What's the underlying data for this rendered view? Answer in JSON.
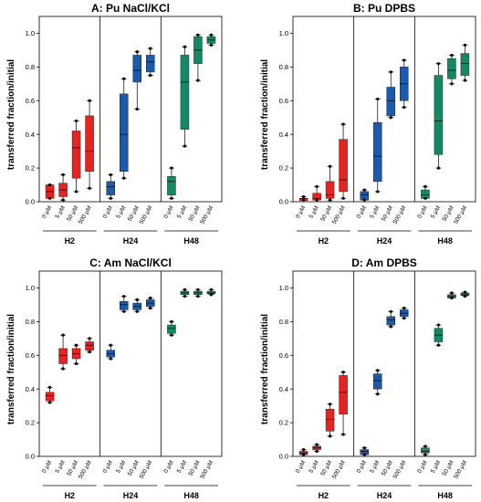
{
  "chart_data": [
    {
      "type": "box",
      "title": "A: Pu NaCl/KCl",
      "ylabel": "transferred fraction/initial",
      "ylim": [
        0,
        1.1
      ],
      "yticks": [
        "0.0",
        "0.2",
        "0.4",
        "0.6",
        "0.8",
        "1.0"
      ],
      "x_categories": [
        "0 µM",
        "5 µM",
        "50 µM",
        "500 µM"
      ],
      "groups": [
        {
          "name": "H2",
          "color": "#e8231f",
          "boxes": [
            {
              "whisker_low": 0.02,
              "q1": 0.02,
              "median": 0.06,
              "q3": 0.1,
              "whisker_high": 0.1
            },
            {
              "whisker_low": 0.01,
              "q1": 0.03,
              "median": 0.07,
              "q3": 0.11,
              "whisker_high": 0.16
            },
            {
              "whisker_low": 0.06,
              "q1": 0.14,
              "median": 0.32,
              "q3": 0.42,
              "whisker_high": 0.48
            },
            {
              "whisker_low": 0.08,
              "q1": 0.18,
              "median": 0.3,
              "q3": 0.51,
              "whisker_high": 0.6
            }
          ]
        },
        {
          "name": "H24",
          "color": "#1c5bab",
          "boxes": [
            {
              "whisker_low": 0.02,
              "q1": 0.04,
              "median": 0.09,
              "q3": 0.12,
              "whisker_high": 0.16
            },
            {
              "whisker_low": 0.14,
              "q1": 0.18,
              "median": 0.4,
              "q3": 0.64,
              "whisker_high": 0.73
            },
            {
              "whisker_low": 0.55,
              "q1": 0.71,
              "median": 0.78,
              "q3": 0.87,
              "whisker_high": 0.89
            },
            {
              "whisker_low": 0.75,
              "q1": 0.77,
              "median": 0.83,
              "q3": 0.87,
              "whisker_high": 0.91
            }
          ]
        },
        {
          "name": "H48",
          "color": "#148a64",
          "boxes": [
            {
              "whisker_low": 0.02,
              "q1": 0.04,
              "median": 0.12,
              "q3": 0.15,
              "whisker_high": 0.2
            },
            {
              "whisker_low": 0.33,
              "q1": 0.43,
              "median": 0.71,
              "q3": 0.87,
              "whisker_high": 0.92
            },
            {
              "whisker_low": 0.72,
              "q1": 0.82,
              "median": 0.9,
              "q3": 0.98,
              "whisker_high": 0.99
            },
            {
              "whisker_low": 0.93,
              "q1": 0.94,
              "median": 0.96,
              "q3": 0.98,
              "whisker_high": 0.99
            }
          ]
        }
      ]
    },
    {
      "type": "box",
      "title": "B: Pu DPBS",
      "ylabel": "transferred fraction/initial",
      "ylim": [
        0,
        1.1
      ],
      "yticks": [
        "0.0",
        "0.2",
        "0.4",
        "0.6",
        "0.8",
        "1.0"
      ],
      "x_categories": [
        "0 µM",
        "5 µM",
        "50 µM",
        "500 µM"
      ],
      "groups": [
        {
          "name": "H2",
          "color": "#e8231f",
          "boxes": [
            {
              "whisker_low": 0.01,
              "q1": 0.01,
              "median": 0.02,
              "q3": 0.02,
              "whisker_high": 0.03
            },
            {
              "whisker_low": 0.01,
              "q1": 0.01,
              "median": 0.02,
              "q3": 0.05,
              "whisker_high": 0.09
            },
            {
              "whisker_low": 0.01,
              "q1": 0.02,
              "median": 0.04,
              "q3": 0.12,
              "whisker_high": 0.21
            },
            {
              "whisker_low": 0.02,
              "q1": 0.06,
              "median": 0.13,
              "q3": 0.37,
              "whisker_high": 0.46
            }
          ]
        },
        {
          "name": "H24",
          "color": "#1c5bab",
          "boxes": [
            {
              "whisker_low": 0.01,
              "q1": 0.01,
              "median": 0.04,
              "q3": 0.06,
              "whisker_high": 0.07
            },
            {
              "whisker_low": 0.06,
              "q1": 0.12,
              "median": 0.27,
              "q3": 0.47,
              "whisker_high": 0.61
            },
            {
              "whisker_low": 0.5,
              "q1": 0.51,
              "median": 0.6,
              "q3": 0.68,
              "whisker_high": 0.77
            },
            {
              "whisker_low": 0.56,
              "q1": 0.6,
              "median": 0.7,
              "q3": 0.8,
              "whisker_high": 0.84
            }
          ]
        },
        {
          "name": "H48",
          "color": "#148a64",
          "boxes": [
            {
              "whisker_low": 0.02,
              "q1": 0.02,
              "median": 0.04,
              "q3": 0.07,
              "whisker_high": 0.09
            },
            {
              "whisker_low": 0.2,
              "q1": 0.28,
              "median": 0.48,
              "q3": 0.75,
              "whisker_high": 0.82
            },
            {
              "whisker_low": 0.7,
              "q1": 0.73,
              "median": 0.78,
              "q3": 0.85,
              "whisker_high": 0.87
            },
            {
              "whisker_low": 0.72,
              "q1": 0.75,
              "median": 0.82,
              "q3": 0.88,
              "whisker_high": 0.93
            }
          ]
        }
      ]
    },
    {
      "type": "box",
      "title": "C: Am NaCl/KCl",
      "ylabel": "transferred fraction/initial",
      "ylim": [
        0,
        1.1
      ],
      "yticks": [
        "0.0",
        "0.2",
        "0.4",
        "0.6",
        "0.8",
        "1.0"
      ],
      "x_categories": [
        "0 µM",
        "5 µM",
        "50 µM",
        "500 µM"
      ],
      "groups": [
        {
          "name": "H2",
          "color": "#e8231f",
          "boxes": [
            {
              "whisker_low": 0.32,
              "q1": 0.33,
              "median": 0.36,
              "q3": 0.38,
              "whisker_high": 0.41
            },
            {
              "whisker_low": 0.52,
              "q1": 0.55,
              "median": 0.6,
              "q3": 0.64,
              "whisker_high": 0.72
            },
            {
              "whisker_low": 0.55,
              "q1": 0.58,
              "median": 0.61,
              "q3": 0.64,
              "whisker_high": 0.66
            },
            {
              "whisker_low": 0.62,
              "q1": 0.63,
              "median": 0.66,
              "q3": 0.68,
              "whisker_high": 0.7
            }
          ]
        },
        {
          "name": "H24",
          "color": "#1c5bab",
          "boxes": [
            {
              "whisker_low": 0.58,
              "q1": 0.59,
              "median": 0.61,
              "q3": 0.63,
              "whisker_high": 0.66
            },
            {
              "whisker_low": 0.86,
              "q1": 0.87,
              "median": 0.9,
              "q3": 0.92,
              "whisker_high": 0.95
            },
            {
              "whisker_low": 0.86,
              "q1": 0.87,
              "median": 0.89,
              "q3": 0.91,
              "whisker_high": 0.93
            },
            {
              "whisker_low": 0.88,
              "q1": 0.89,
              "median": 0.91,
              "q3": 0.93,
              "whisker_high": 0.94
            }
          ]
        },
        {
          "name": "H48",
          "color": "#148a64",
          "boxes": [
            {
              "whisker_low": 0.72,
              "q1": 0.73,
              "median": 0.76,
              "q3": 0.78,
              "whisker_high": 0.8
            },
            {
              "whisker_low": 0.95,
              "q1": 0.96,
              "median": 0.97,
              "q3": 0.98,
              "whisker_high": 0.99
            },
            {
              "whisker_low": 0.95,
              "q1": 0.96,
              "median": 0.97,
              "q3": 0.98,
              "whisker_high": 0.99
            },
            {
              "whisker_low": 0.96,
              "q1": 0.965,
              "median": 0.97,
              "q3": 0.98,
              "whisker_high": 0.99
            }
          ]
        }
      ]
    },
    {
      "type": "box",
      "title": "D: Am DPBS",
      "ylabel": "transferred fraction/initial",
      "ylim": [
        0,
        1.1
      ],
      "yticks": [
        "0.0",
        "0.2",
        "0.4",
        "0.6",
        "0.8",
        "1.0"
      ],
      "x_categories": [
        "0 µM",
        "5 µM",
        "50 µM",
        "500 µM"
      ],
      "groups": [
        {
          "name": "H2",
          "color": "#e8231f",
          "boxes": [
            {
              "whisker_low": 0.01,
              "q1": 0.01,
              "median": 0.02,
              "q3": 0.03,
              "whisker_high": 0.04
            },
            {
              "whisker_low": 0.03,
              "q1": 0.04,
              "median": 0.05,
              "q3": 0.06,
              "whisker_high": 0.07
            },
            {
              "whisker_low": 0.12,
              "q1": 0.15,
              "median": 0.22,
              "q3": 0.28,
              "whisker_high": 0.31
            },
            {
              "whisker_low": 0.13,
              "q1": 0.25,
              "median": 0.38,
              "q3": 0.48,
              "whisker_high": 0.5
            }
          ]
        },
        {
          "name": "H24",
          "color": "#1c5bab",
          "boxes": [
            {
              "whisker_low": 0.01,
              "q1": 0.01,
              "median": 0.03,
              "q3": 0.04,
              "whisker_high": 0.05
            },
            {
              "whisker_low": 0.37,
              "q1": 0.4,
              "median": 0.45,
              "q3": 0.49,
              "whisker_high": 0.51
            },
            {
              "whisker_low": 0.77,
              "q1": 0.78,
              "median": 0.81,
              "q3": 0.83,
              "whisker_high": 0.86
            },
            {
              "whisker_low": 0.82,
              "q1": 0.83,
              "median": 0.85,
              "q3": 0.87,
              "whisker_high": 0.88
            }
          ]
        },
        {
          "name": "H48",
          "color": "#148a64",
          "boxes": [
            {
              "whisker_low": 0.01,
              "q1": 0.02,
              "median": 0.03,
              "q3": 0.05,
              "whisker_high": 0.06
            },
            {
              "whisker_low": 0.66,
              "q1": 0.68,
              "median": 0.72,
              "q3": 0.76,
              "whisker_high": 0.78
            },
            {
              "whisker_low": 0.94,
              "q1": 0.94,
              "median": 0.95,
              "q3": 0.96,
              "whisker_high": 0.97
            },
            {
              "whisker_low": 0.95,
              "q1": 0.955,
              "median": 0.96,
              "q3": 0.97,
              "whisker_high": 0.975
            }
          ]
        }
      ]
    }
  ]
}
